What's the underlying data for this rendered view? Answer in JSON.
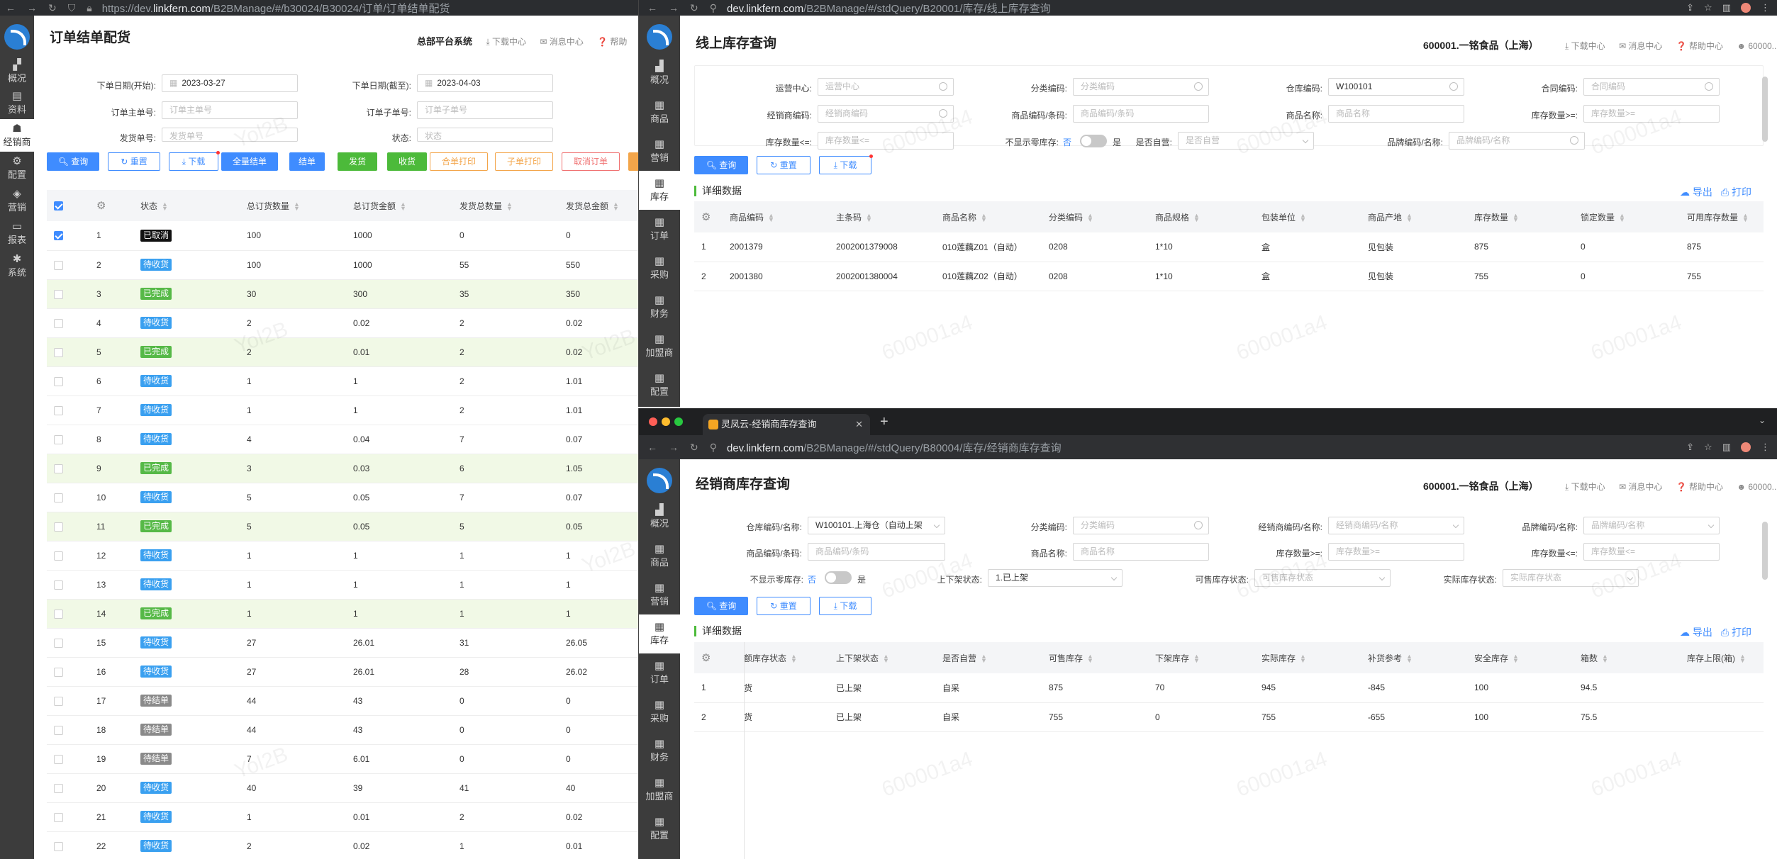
{
  "win1": {
    "url_prefix": "https://dev.",
    "url_domain": "linkfern.com",
    "url_path": "/B2BManage/#/b30024/B30024/订单/订单结单配货",
    "title": "订单结单配货",
    "header": {
      "system": "总部平台系统",
      "download": "下载中心",
      "message": "消息中心",
      "help": "帮助"
    },
    "sidebar": [
      "概况",
      "资料",
      "经销商",
      "配置",
      "营销",
      "报表",
      "系统"
    ],
    "filters": {
      "start_label": "下单日期(开始):",
      "start_value": "2023-03-27",
      "end_label": "下单日期(截至):",
      "end_value": "2023-04-03",
      "main_label": "订单主单号:",
      "main_ph": "订单主单号",
      "sub_label": "订单子单号:",
      "sub_ph": "订单子单号",
      "ship_label": "发货单号:",
      "ship_ph": "发货单号",
      "status_label": "状态:",
      "status_ph": "状态"
    },
    "buttons": {
      "query": "查询",
      "reset": "重置",
      "download": "下载",
      "close_all": "全量结单",
      "close": "结单",
      "ship": "发货",
      "receive": "收货",
      "merge_print": "合单打印",
      "sub_print": "子单打印",
      "cancel": "取消订单"
    },
    "columns": [
      "状态",
      "总订货数量",
      "总订货金额",
      "发货总数量",
      "发货总金额"
    ],
    "rows": [
      {
        "n": "1",
        "status": "已取消",
        "s": "black",
        "qty": "100",
        "amt": "1000",
        "sq": "0",
        "sa": "0",
        "chk": true
      },
      {
        "n": "2",
        "status": "待收货",
        "s": "blue",
        "qty": "100",
        "amt": "1000",
        "sq": "55",
        "sa": "550"
      },
      {
        "n": "3",
        "status": "已完成",
        "s": "green",
        "qty": "30",
        "amt": "300",
        "sq": "35",
        "sa": "350"
      },
      {
        "n": "4",
        "status": "待收货",
        "s": "blue",
        "qty": "2",
        "amt": "0.02",
        "sq": "2",
        "sa": "0.02"
      },
      {
        "n": "5",
        "status": "已完成",
        "s": "green",
        "qty": "2",
        "amt": "0.01",
        "sq": "2",
        "sa": "0.02"
      },
      {
        "n": "6",
        "status": "待收货",
        "s": "blue",
        "qty": "1",
        "amt": "1",
        "sq": "2",
        "sa": "1.01"
      },
      {
        "n": "7",
        "status": "待收货",
        "s": "blue",
        "qty": "1",
        "amt": "1",
        "sq": "2",
        "sa": "1.01"
      },
      {
        "n": "8",
        "status": "待收货",
        "s": "blue",
        "qty": "4",
        "amt": "0.04",
        "sq": "7",
        "sa": "0.07"
      },
      {
        "n": "9",
        "status": "已完成",
        "s": "green",
        "qty": "3",
        "amt": "0.03",
        "sq": "6",
        "sa": "1.05"
      },
      {
        "n": "10",
        "status": "待收货",
        "s": "blue",
        "qty": "5",
        "amt": "0.05",
        "sq": "7",
        "sa": "0.07"
      },
      {
        "n": "11",
        "status": "已完成",
        "s": "green",
        "qty": "5",
        "amt": "0.05",
        "sq": "5",
        "sa": "0.05"
      },
      {
        "n": "12",
        "status": "待收货",
        "s": "blue",
        "qty": "1",
        "amt": "1",
        "sq": "1",
        "sa": "1"
      },
      {
        "n": "13",
        "status": "待收货",
        "s": "blue",
        "qty": "1",
        "amt": "1",
        "sq": "1",
        "sa": "1"
      },
      {
        "n": "14",
        "status": "已完成",
        "s": "green",
        "qty": "1",
        "amt": "1",
        "sq": "1",
        "sa": "1"
      },
      {
        "n": "15",
        "status": "待收货",
        "s": "blue",
        "qty": "27",
        "amt": "26.01",
        "sq": "31",
        "sa": "26.05"
      },
      {
        "n": "16",
        "status": "待收货",
        "s": "blue",
        "qty": "27",
        "amt": "26.01",
        "sq": "28",
        "sa": "26.02"
      },
      {
        "n": "17",
        "status": "待结单",
        "s": "gray",
        "qty": "44",
        "amt": "43",
        "sq": "0",
        "sa": "0"
      },
      {
        "n": "18",
        "status": "待结单",
        "s": "gray",
        "qty": "44",
        "amt": "43",
        "sq": "0",
        "sa": "0"
      },
      {
        "n": "19",
        "status": "待结单",
        "s": "gray",
        "qty": "7",
        "amt": "6.01",
        "sq": "0",
        "sa": "0"
      },
      {
        "n": "20",
        "status": "待收货",
        "s": "blue",
        "qty": "40",
        "amt": "39",
        "sq": "41",
        "sa": "40"
      },
      {
        "n": "21",
        "status": "待收货",
        "s": "blue",
        "qty": "1",
        "amt": "0.01",
        "sq": "2",
        "sa": "0.02"
      },
      {
        "n": "22",
        "status": "待收货",
        "s": "blue",
        "qty": "2",
        "amt": "0.02",
        "sq": "1",
        "sa": "0.01"
      }
    ]
  },
  "win2": {
    "url_domain": "dev.linkfern.com",
    "url_path": "/B2BManage/#/stdQuery/B20001/库存/线上库存查询",
    "title": "线上库存查询",
    "header": {
      "company": "600001.一铭食品（上海）",
      "download": "下载中心",
      "message": "消息中心",
      "help": "帮助中心",
      "user": "60000..."
    },
    "sidebar": [
      "概况",
      "商品",
      "营销",
      "库存",
      "订单",
      "采购",
      "财务",
      "加盟商",
      "配置"
    ],
    "filters": {
      "op_label": "运营中心:",
      "op_ph": "运营中心",
      "cat_label": "分类编码:",
      "cat_ph": "分类编码",
      "wh_label": "仓库编码:",
      "wh_value": "W100101",
      "contract_label": "合同编码:",
      "contract_ph": "合同编码",
      "dealer_label": "经销商编码:",
      "dealer_ph": "经销商编码",
      "code_label": "商品编码/条码:",
      "code_ph": "商品编码/条码",
      "name_label": "商品名称:",
      "name_ph": "商品名称",
      "gte_label": "库存数量>=:",
      "gte_ph": "库存数量>=",
      "lte_label": "库存数量<=:",
      "lte_ph": "库存数量<=",
      "zero_label": "不显示零库存:",
      "zero_no": "否",
      "zero_yes": "是",
      "self_label": "是否自营:",
      "self_ph": "是否自营",
      "brand_label": "品牌编码/名称:",
      "brand_ph": "品牌编码/名称"
    },
    "buttons": {
      "query": "查询",
      "reset": "重置",
      "download": "下载",
      "export": "导出",
      "print": "打印"
    },
    "section": "详细数据",
    "columns": [
      "商品编码",
      "主条码",
      "商品名称",
      "分类编码",
      "商品规格",
      "包装单位",
      "商品产地",
      "库存数量",
      "锁定数量",
      "可用库存数量"
    ],
    "rows": [
      {
        "n": "1",
        "c": [
          "2001379",
          "2002001379008",
          "010莲藕Z01（自动）",
          "0208",
          "1*10",
          "盒",
          "见包装",
          "875",
          "0",
          "875"
        ]
      },
      {
        "n": "2",
        "c": [
          "2001380",
          "2002001380004",
          "010莲藕Z02（自动）",
          "0208",
          "1*10",
          "盒",
          "见包装",
          "755",
          "0",
          "755"
        ]
      }
    ]
  },
  "win3": {
    "tab_title": "灵凤云-经销商库存查询",
    "url_domain": "dev.linkfern.com",
    "url_path": "/B2BManage/#/stdQuery/B80004/库存/经销商库存查询",
    "title": "经销商库存查询",
    "header": {
      "company": "600001.一铭食品（上海）",
      "download": "下载中心",
      "message": "消息中心",
      "help": "帮助中心",
      "user": "60000..."
    },
    "sidebar": [
      "概况",
      "商品",
      "营销",
      "库存",
      "订单",
      "采购",
      "财务",
      "加盟商",
      "配置"
    ],
    "filters": {
      "wh_label": "仓库编码/名称:",
      "wh_value": "W100101.上海仓（自动上架",
      "cat_label": "分类编码:",
      "cat_ph": "分类编码",
      "dealer_label": "经销商编码/名称:",
      "dealer_ph": "经销商编码/名称",
      "brand_label": "品牌编码/名称:",
      "brand_ph": "品牌编码/名称",
      "code_label": "商品编码/条码:",
      "code_ph": "商品编码/条码",
      "name_label": "商品名称:",
      "name_ph": "商品名称",
      "gte_label": "库存数量>=:",
      "gte_ph": "库存数量>=",
      "lte_label": "库存数量<=:",
      "lte_ph": "库存数量<=",
      "zero_label": "不显示零库存:",
      "zero_no": "否",
      "zero_yes": "是",
      "shelf_label": "上下架状态:",
      "shelf_value": "1.已上架",
      "sale_label": "可售库存状态:",
      "sale_ph": "可售库存状态",
      "real_label": "实际库存状态:",
      "real_ph": "实际库存状态"
    },
    "buttons": {
      "query": "查询",
      "reset": "重置",
      "download": "下载",
      "export": "导出",
      "print": "打印"
    },
    "section": "详细数据",
    "columns": [
      "额库存状态",
      "上下架状态",
      "是否自营",
      "可售库存",
      "下架库存",
      "实际库存",
      "补货参考",
      "安全库存",
      "箱数",
      "库存上限(箱)"
    ],
    "rows": [
      {
        "n": "1",
        "c": [
          "货",
          "已上架",
          "自采",
          "875",
          "70",
          "945",
          "-845",
          "100",
          "94.5",
          ""
        ]
      },
      {
        "n": "2",
        "c": [
          "货",
          "已上架",
          "自采",
          "755",
          "0",
          "755",
          "-655",
          "100",
          "75.5",
          ""
        ]
      }
    ]
  },
  "watermarks": {
    "a": "Yol2B",
    "b": "600001a4"
  }
}
